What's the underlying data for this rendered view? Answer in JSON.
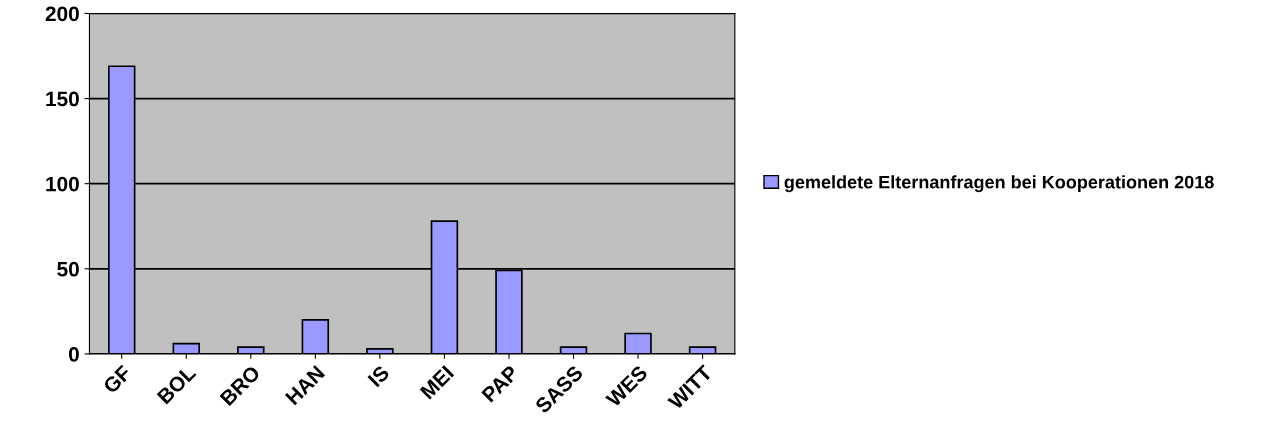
{
  "chart_data": {
    "type": "bar",
    "categories": [
      "GF",
      "BOL",
      "BRO",
      "HAN",
      "IS",
      "MEI",
      "PAP",
      "SASS",
      "WES",
      "WITT"
    ],
    "series": [
      {
        "name": "gemeldete Elternanfragen bei Kooperationen 2018",
        "color": "#9999ff",
        "values": [
          169,
          6,
          4,
          20,
          3,
          78,
          49,
          4,
          12,
          4
        ]
      }
    ],
    "ylim": [
      0,
      200
    ],
    "yticks": [
      0,
      50,
      100,
      150,
      200
    ],
    "grid": "y",
    "legend": "right"
  }
}
